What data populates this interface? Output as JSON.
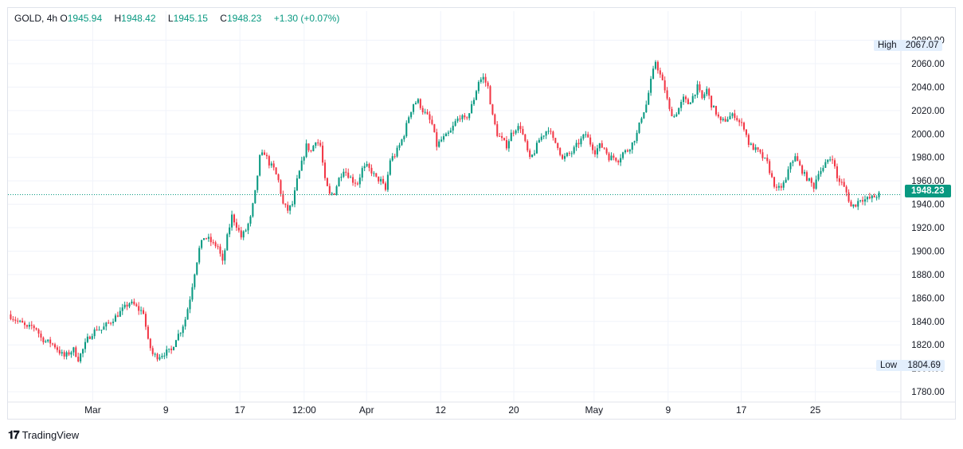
{
  "legend": {
    "symbol": "GOLD",
    "interval": "4h",
    "o_label": "O",
    "o_value": "1945.94",
    "h_label": "H",
    "h_value": "1948.42",
    "l_label": "L",
    "l_value": "1945.15",
    "c_label": "C",
    "c_value": "1948.23",
    "change": "+1.30 (+0.07%)"
  },
  "markers": {
    "high_label": "High",
    "high_value": "2067.07",
    "low_label": "Low",
    "low_value": "1804.69",
    "last_price": "1948.23"
  },
  "branding": {
    "text": "TradingView"
  },
  "colors": {
    "up": "#089981",
    "down": "#f23645",
    "last_price_bg": "#089981",
    "grid": "#f0f3fa",
    "axis_text": "#131722",
    "marker_bg": "#e3effd"
  },
  "chart_data": {
    "type": "candlestick",
    "y_ticks": [
      "2080.00",
      "2060.00",
      "2040.00",
      "2020.00",
      "2000.00",
      "1980.00",
      "1960.00",
      "1940.00",
      "1920.00",
      "1900.00",
      "1880.00",
      "1860.00",
      "1840.00",
      "1820.00",
      "1800.00",
      "1780.00"
    ],
    "ylim": [
      1776,
      2098
    ],
    "x_ticks": [
      {
        "label": "Mar",
        "pos": 0.095
      },
      {
        "label": "9",
        "pos": 0.177
      },
      {
        "label": "17",
        "pos": 0.26
      },
      {
        "label": "12:00",
        "pos": 0.332
      },
      {
        "label": "Apr",
        "pos": 0.402
      },
      {
        "label": "12",
        "pos": 0.485
      },
      {
        "label": "20",
        "pos": 0.567
      },
      {
        "label": "May",
        "pos": 0.657
      },
      {
        "label": "9",
        "pos": 0.74
      },
      {
        "label": "17",
        "pos": 0.822
      },
      {
        "label": "25",
        "pos": 0.905
      }
    ],
    "close_path": [
      1846,
      1843,
      1840,
      1838,
      1834,
      1836,
      1834,
      1826,
      1823,
      1822,
      1819,
      1814,
      1810,
      1813,
      1816,
      1808,
      1816,
      1825,
      1830,
      1834,
      1833,
      1837,
      1840,
      1844,
      1848,
      1852,
      1856,
      1854,
      1850,
      1848,
      1823,
      1812,
      1810,
      1812,
      1814,
      1815,
      1826,
      1832,
      1842,
      1860,
      1882,
      1902,
      1912,
      1910,
      1906,
      1904,
      1890,
      1912,
      1930,
      1922,
      1912,
      1918,
      1928,
      1950,
      1980,
      1984,
      1975,
      1970,
      1960,
      1940,
      1935,
      1940,
      1960,
      1975,
      1990,
      1985,
      1995,
      1990,
      1960,
      1948,
      1950,
      1962,
      1970,
      1965,
      1960,
      1958,
      1970,
      1972,
      1968,
      1962,
      1960,
      1952,
      1978,
      1982,
      1990,
      2000,
      2015,
      2026,
      2028,
      2020,
      2015,
      2008,
      1990,
      1995,
      1998,
      2002,
      2010,
      2015,
      2012,
      2018,
      2030,
      2045,
      2048,
      2040,
      2015,
      2000,
      1995,
      1990,
      2000,
      2005,
      2006,
      1992,
      1978,
      1985,
      1995,
      2000,
      2005,
      1995,
      1990,
      1978,
      1982,
      1984,
      1990,
      1995,
      2000,
      1992,
      1985,
      1990,
      1988,
      1980,
      1980,
      1978,
      1984,
      1986,
      1992,
      2000,
      2015,
      2025,
      2045,
      2062,
      2050,
      2038,
      2020,
      2015,
      2022,
      2030,
      2026,
      2032,
      2040,
      2030,
      2038,
      2025,
      2018,
      2010,
      2012,
      2015,
      2016,
      2010,
      2006,
      1992,
      1988,
      1985,
      1980,
      1975,
      1962,
      1952,
      1955,
      1960,
      1976,
      1980,
      1972,
      1965,
      1960,
      1955,
      1968,
      1970,
      1978,
      1980,
      1962,
      1958,
      1950,
      1938,
      1940,
      1945,
      1944,
      1945,
      1946.3,
      1948.23
    ]
  }
}
